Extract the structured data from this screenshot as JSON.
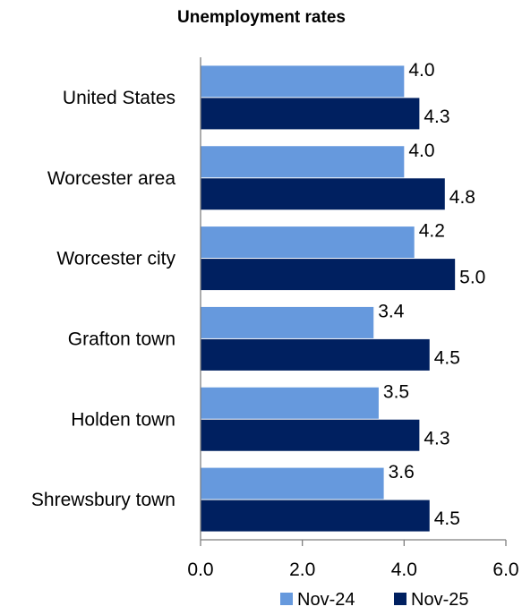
{
  "chart_data": {
    "type": "bar",
    "orientation": "horizontal",
    "title": "Unemployment rates",
    "categories": [
      "United States",
      "Worcester area",
      "Worcester city",
      "Grafton town",
      "Holden town",
      "Shrewsbury town"
    ],
    "series": [
      {
        "name": "Nov-24",
        "color": "#6699DD",
        "values": [
          4.0,
          4.0,
          4.2,
          3.4,
          3.5,
          3.6
        ],
        "labels": [
          "4.0",
          "4.0",
          "4.2",
          "3.4",
          "3.5",
          "3.6"
        ]
      },
      {
        "name": "Nov-25",
        "color": "#002060",
        "values": [
          4.3,
          4.8,
          5.0,
          4.5,
          4.3,
          4.5
        ],
        "labels": [
          "4.3",
          "4.8",
          "5.0",
          "4.5",
          "4.3",
          "4.5"
        ]
      }
    ],
    "xlim": [
      0,
      6
    ],
    "xticks": [
      "0.0",
      "2.0",
      "4.0",
      "6.0"
    ],
    "grid": false,
    "legend": "bottom"
  }
}
